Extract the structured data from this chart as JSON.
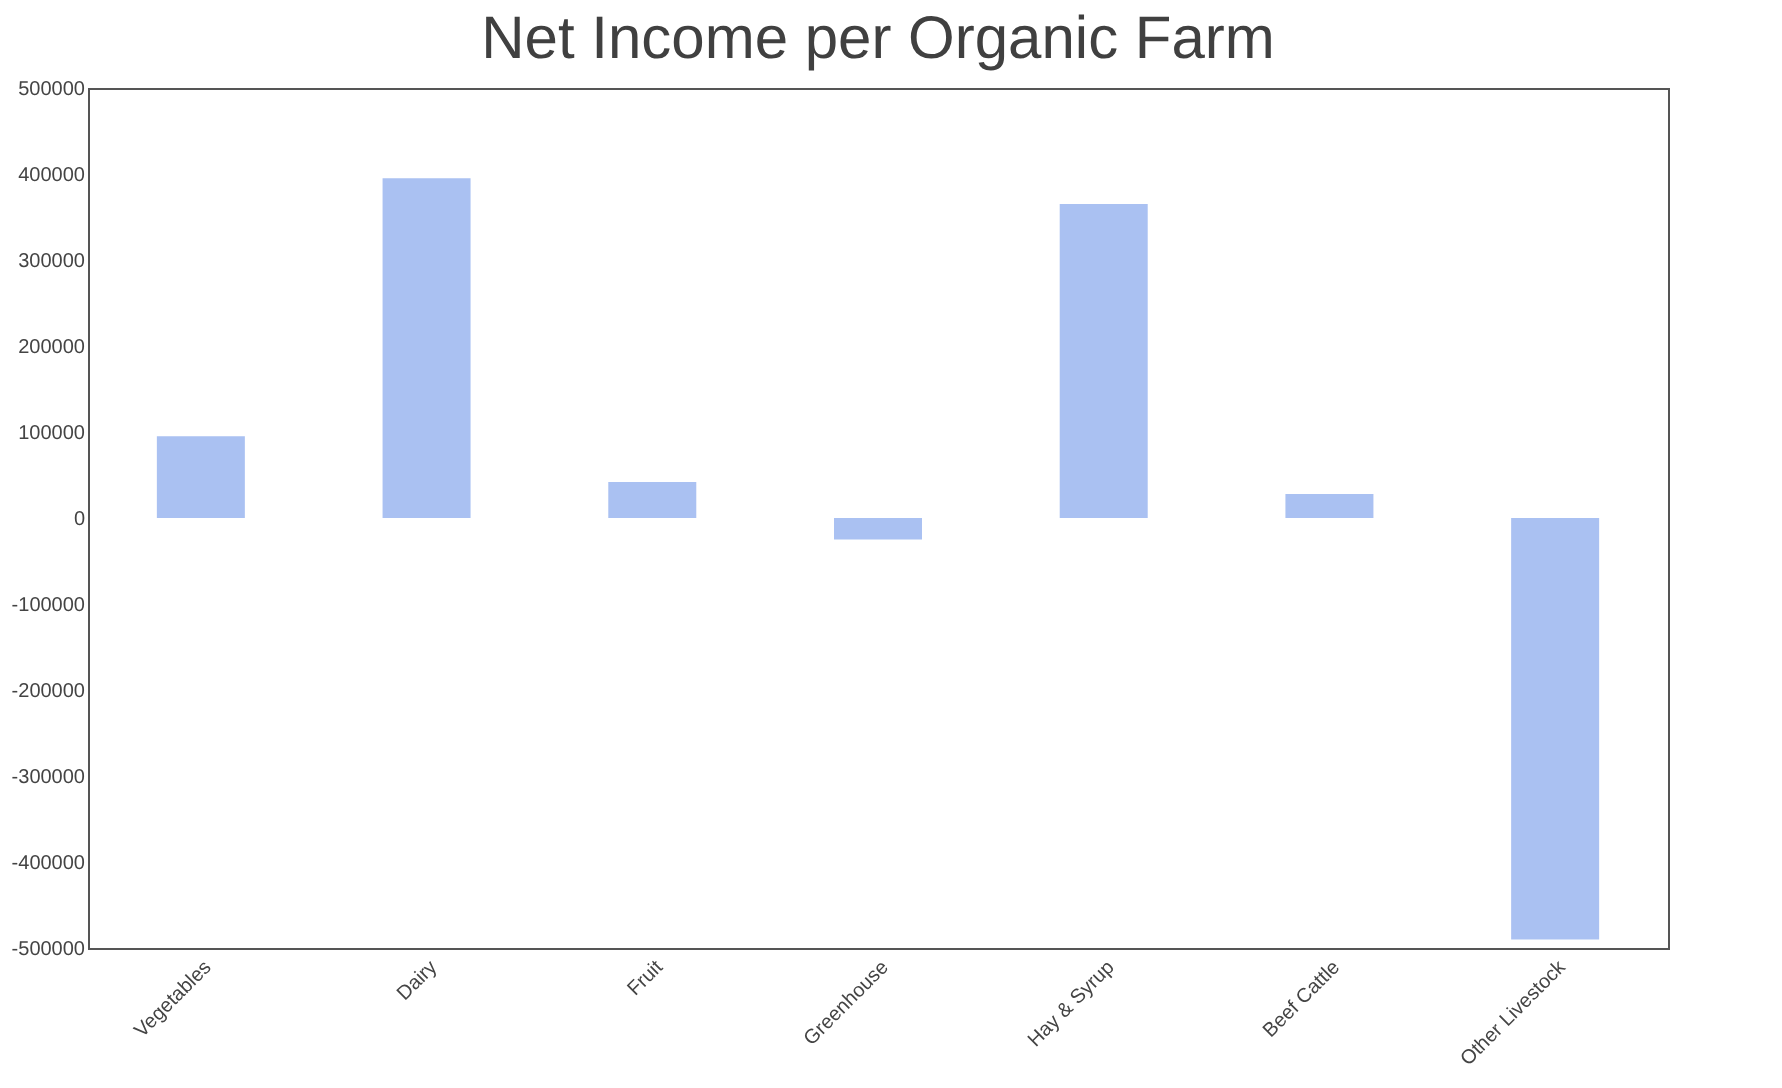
{
  "chart_data": {
    "type": "bar",
    "title": "Net Income per Organic Farm",
    "categories": [
      "Vegetables",
      "Dairy",
      "Fruit",
      "Greenhouse",
      "Hay & Syrup",
      "Beef Cattle",
      "Other Livestock"
    ],
    "values": [
      95000,
      395000,
      42000,
      -25000,
      365000,
      28000,
      -490000
    ],
    "color": "#aac1f2",
    "ylim": [
      -500000,
      500000
    ],
    "yticks": [
      -500000,
      -400000,
      -300000,
      -200000,
      -100000,
      0,
      100000,
      200000,
      300000,
      400000,
      500000
    ],
    "grid": false
  }
}
